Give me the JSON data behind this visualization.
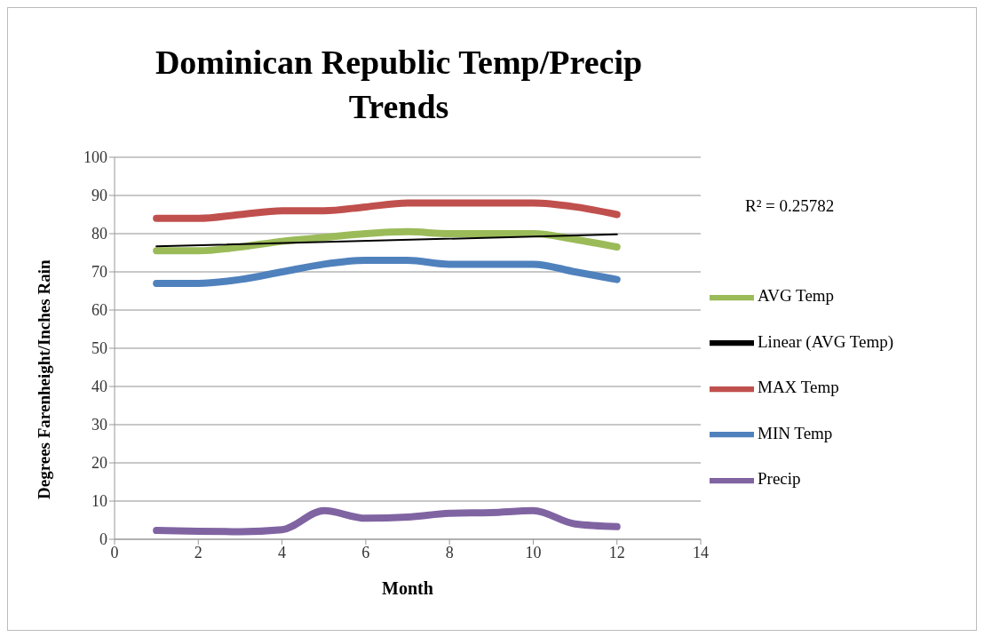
{
  "chart_data": {
    "type": "line",
    "title": "Dominican Republic Temp/Precip Trends",
    "xlabel": "Month",
    "ylabel": "Degrees Farenheight/Inches Rain",
    "x": [
      1,
      2,
      3,
      4,
      5,
      6,
      7,
      8,
      9,
      10,
      11,
      12
    ],
    "series": [
      {
        "name": "MIN Temp",
        "color": "#4f81bd",
        "values": [
          67,
          67,
          68,
          70,
          72,
          73,
          73,
          72,
          72,
          72,
          70,
          68
        ]
      },
      {
        "name": "MAX Temp",
        "color": "#c0504d",
        "values": [
          84,
          84,
          85,
          86,
          86,
          87,
          88,
          88,
          88,
          88,
          87,
          85
        ]
      },
      {
        "name": "AVG Temp",
        "color": "#9bbb59",
        "values": [
          75.5,
          75.5,
          76.5,
          78,
          79,
          80,
          80.5,
          80,
          80,
          80,
          78.5,
          76.5
        ]
      },
      {
        "name": "Precip",
        "color": "#8064a2",
        "values": [
          2.3,
          2.1,
          2,
          2.5,
          7.5,
          5.5,
          5.8,
          6.8,
          7,
          7.5,
          4,
          3.3
        ]
      },
      {
        "name": "Linear (AVG Temp)",
        "color": "#000000",
        "x": [
          1,
          12
        ],
        "values": [
          76.7,
          79.8
        ]
      }
    ],
    "xlim": [
      0,
      14
    ],
    "xticks": [
      0,
      2,
      4,
      6,
      8,
      10,
      12,
      14
    ],
    "ylim": [
      0,
      100
    ],
    "yticks": [
      0,
      10,
      20,
      30,
      40,
      50,
      60,
      70,
      80,
      90,
      100
    ],
    "grid": "y",
    "legend": "right",
    "marker": "none",
    "line_style": "solid",
    "annotations": [
      "R² = 0.25782"
    ]
  }
}
